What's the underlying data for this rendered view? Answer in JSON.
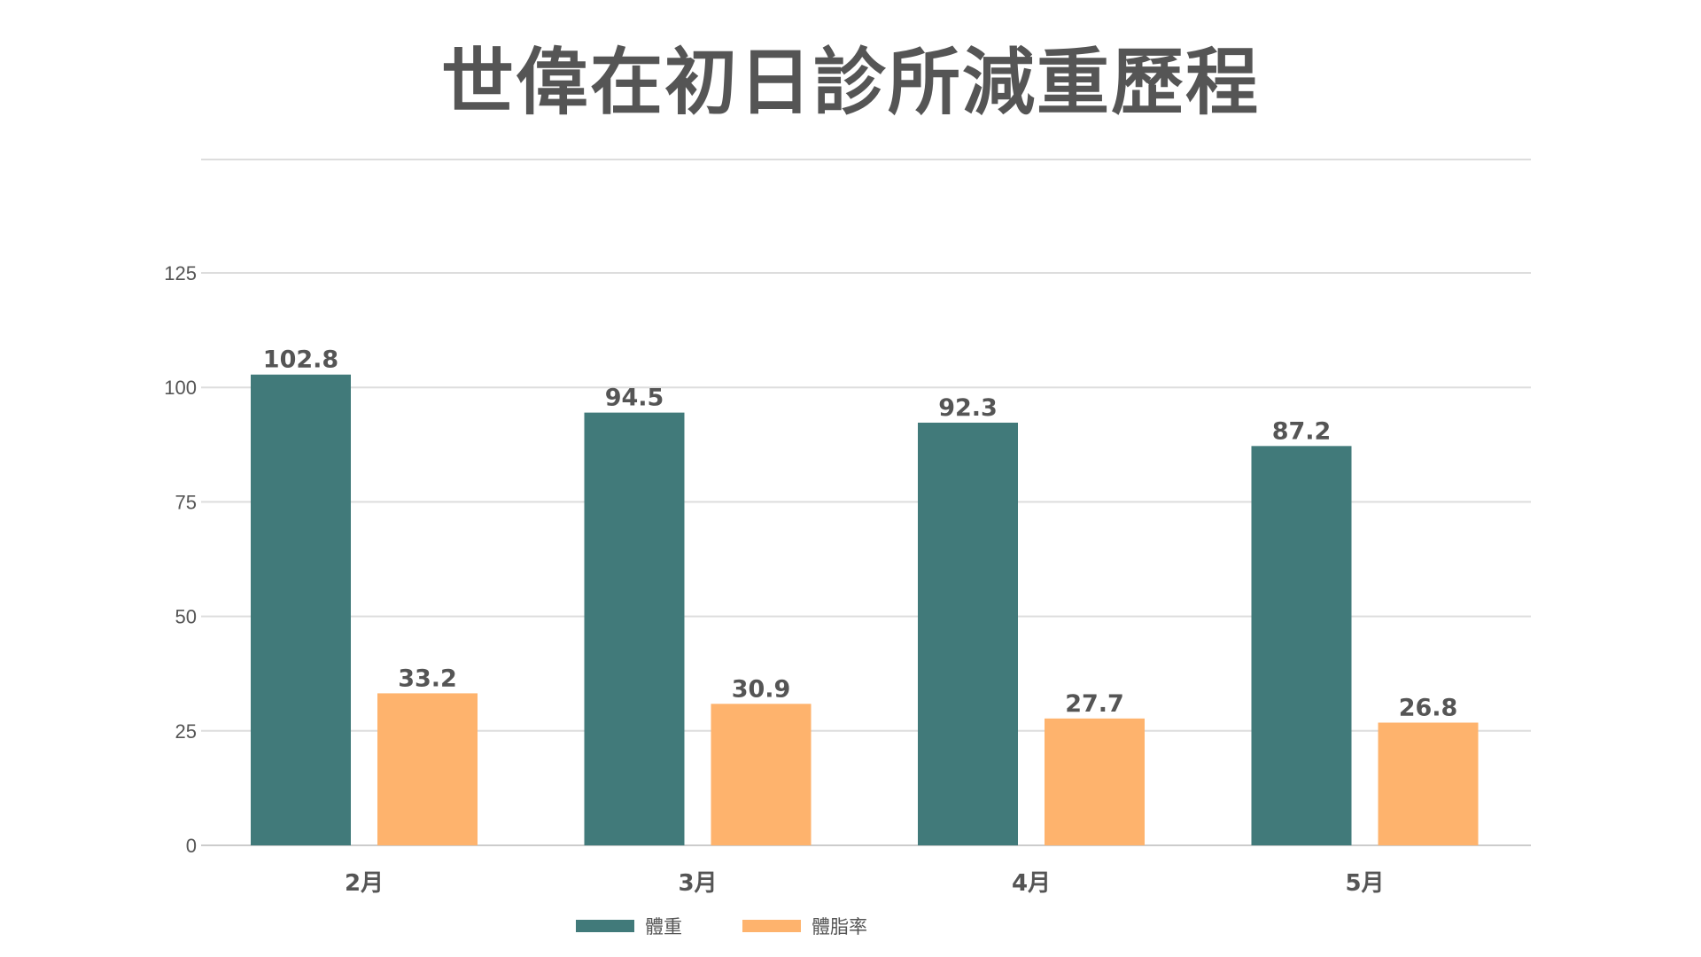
{
  "chart_data": {
    "type": "bar",
    "title": "世偉在初日診所減重歷程",
    "categories": [
      "2月",
      "3月",
      "4月",
      "5月"
    ],
    "series": [
      {
        "name": "體重",
        "values": [
          102.8,
          94.5,
          92.3,
          87.2
        ],
        "color": "#417a7a"
      },
      {
        "name": "體脂率",
        "values": [
          33.2,
          30.9,
          27.7,
          26.8
        ],
        "color": "#feb36d"
      }
    ],
    "ylim": [
      0,
      125
    ],
    "yticks": [
      0,
      25,
      50,
      75,
      100,
      125
    ],
    "xlabel": "",
    "ylabel": "",
    "grid": true,
    "legend": "bottom"
  }
}
